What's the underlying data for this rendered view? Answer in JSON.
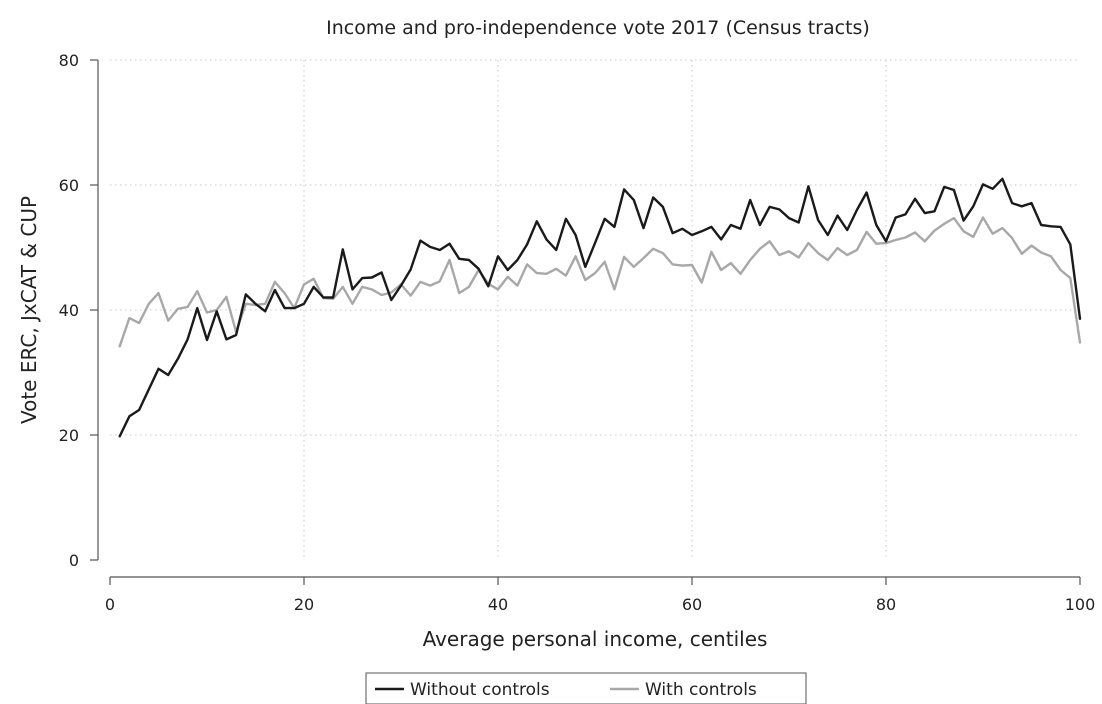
{
  "chart_data": {
    "type": "line",
    "title": "Income and pro-independence vote 2017 (Census tracts)",
    "xlabel": "Average personal income, centiles",
    "ylabel": "Vote ERC, JxCAT & CUP",
    "xlim": [
      0,
      100
    ],
    "ylim": [
      0,
      80
    ],
    "xticks": [
      "0",
      "20",
      "40",
      "60",
      "80",
      "100"
    ],
    "yticks": [
      "0",
      "20",
      "40",
      "60",
      "80"
    ],
    "grid": "dotted",
    "legend_position": "bottom",
    "x": [
      1,
      2,
      3,
      4,
      5,
      6,
      7,
      8,
      9,
      10,
      11,
      12,
      13,
      14,
      15,
      16,
      17,
      18,
      19,
      20,
      21,
      22,
      23,
      24,
      25,
      26,
      27,
      28,
      29,
      30,
      31,
      32,
      33,
      34,
      35,
      36,
      37,
      38,
      39,
      40,
      41,
      42,
      43,
      44,
      45,
      46,
      47,
      48,
      49,
      50,
      51,
      52,
      53,
      54,
      55,
      56,
      57,
      58,
      59,
      60,
      61,
      62,
      63,
      64,
      65,
      66,
      67,
      68,
      69,
      70,
      71,
      72,
      73,
      74,
      75,
      76,
      77,
      78,
      79,
      80,
      81,
      82,
      83,
      84,
      85,
      86,
      87,
      88,
      89,
      90,
      91,
      92,
      93,
      94,
      95,
      96,
      97,
      98,
      99,
      100
    ],
    "series": [
      {
        "name": "Without controls",
        "color": "#1a1a1a",
        "values": [
          19.8,
          23.0,
          24.0,
          27.3,
          30.6,
          29.6,
          32.2,
          35.3,
          40.3,
          35.2,
          39.8,
          35.3,
          36.0,
          42.5,
          41.0,
          39.8,
          43.2,
          40.3,
          40.3,
          41.0,
          43.7,
          42.0,
          42.0,
          49.7,
          43.3,
          45.1,
          45.2,
          46.0,
          41.6,
          43.9,
          46.5,
          51.1,
          50.1,
          49.6,
          50.6,
          48.2,
          48.0,
          46.6,
          43.8,
          48.6,
          46.4,
          48.0,
          50.5,
          54.2,
          51.3,
          49.6,
          54.6,
          52.0,
          46.9,
          50.7,
          54.6,
          53.3,
          59.3,
          57.6,
          53.1,
          58.0,
          56.5,
          52.3,
          53.0,
          52.0,
          52.6,
          53.3,
          51.3,
          53.6,
          53.0,
          57.6,
          53.6,
          56.5,
          56.1,
          54.7,
          54.0,
          59.8,
          54.4,
          52.0,
          55.1,
          52.8,
          56.0,
          58.8,
          53.6,
          51.0,
          54.8,
          55.3,
          57.8,
          55.5,
          55.8,
          59.7,
          59.2,
          54.3,
          56.6,
          60.1,
          59.4,
          61.0,
          57.1,
          56.6,
          57.1,
          53.6,
          53.4,
          53.3,
          50.5,
          38.6
        ]
      },
      {
        "name": "With controls",
        "color": "#a8a8a8",
        "values": [
          34.2,
          38.7,
          37.9,
          41.0,
          42.7,
          38.3,
          40.2,
          40.5,
          43.0,
          39.6,
          40.0,
          42.1,
          36.5,
          41.0,
          40.8,
          41.0,
          44.5,
          42.7,
          40.3,
          44.1,
          45.0,
          41.9,
          41.8,
          43.7,
          41.0,
          43.7,
          43.3,
          42.4,
          42.8,
          44.1,
          42.3,
          44.5,
          43.9,
          44.6,
          48.0,
          42.7,
          43.7,
          46.4,
          44.2,
          43.3,
          45.3,
          43.9,
          47.3,
          45.9,
          45.8,
          46.6,
          45.5,
          48.6,
          44.8,
          45.9,
          47.7,
          43.3,
          48.5,
          46.9,
          48.3,
          49.8,
          49.1,
          47.3,
          47.1,
          47.2,
          44.4,
          49.3,
          46.4,
          47.5,
          45.8,
          48.0,
          49.8,
          51.0,
          48.8,
          49.4,
          48.4,
          50.7,
          49.1,
          48.0,
          49.9,
          48.8,
          49.6,
          52.5,
          50.6,
          50.7,
          51.2,
          51.6,
          52.4,
          51.0,
          52.7,
          53.8,
          54.7,
          52.6,
          51.7,
          54.8,
          52.2,
          53.1,
          51.5,
          49.0,
          50.3,
          49.2,
          48.6,
          46.4,
          45.1,
          34.8
        ]
      }
    ]
  }
}
